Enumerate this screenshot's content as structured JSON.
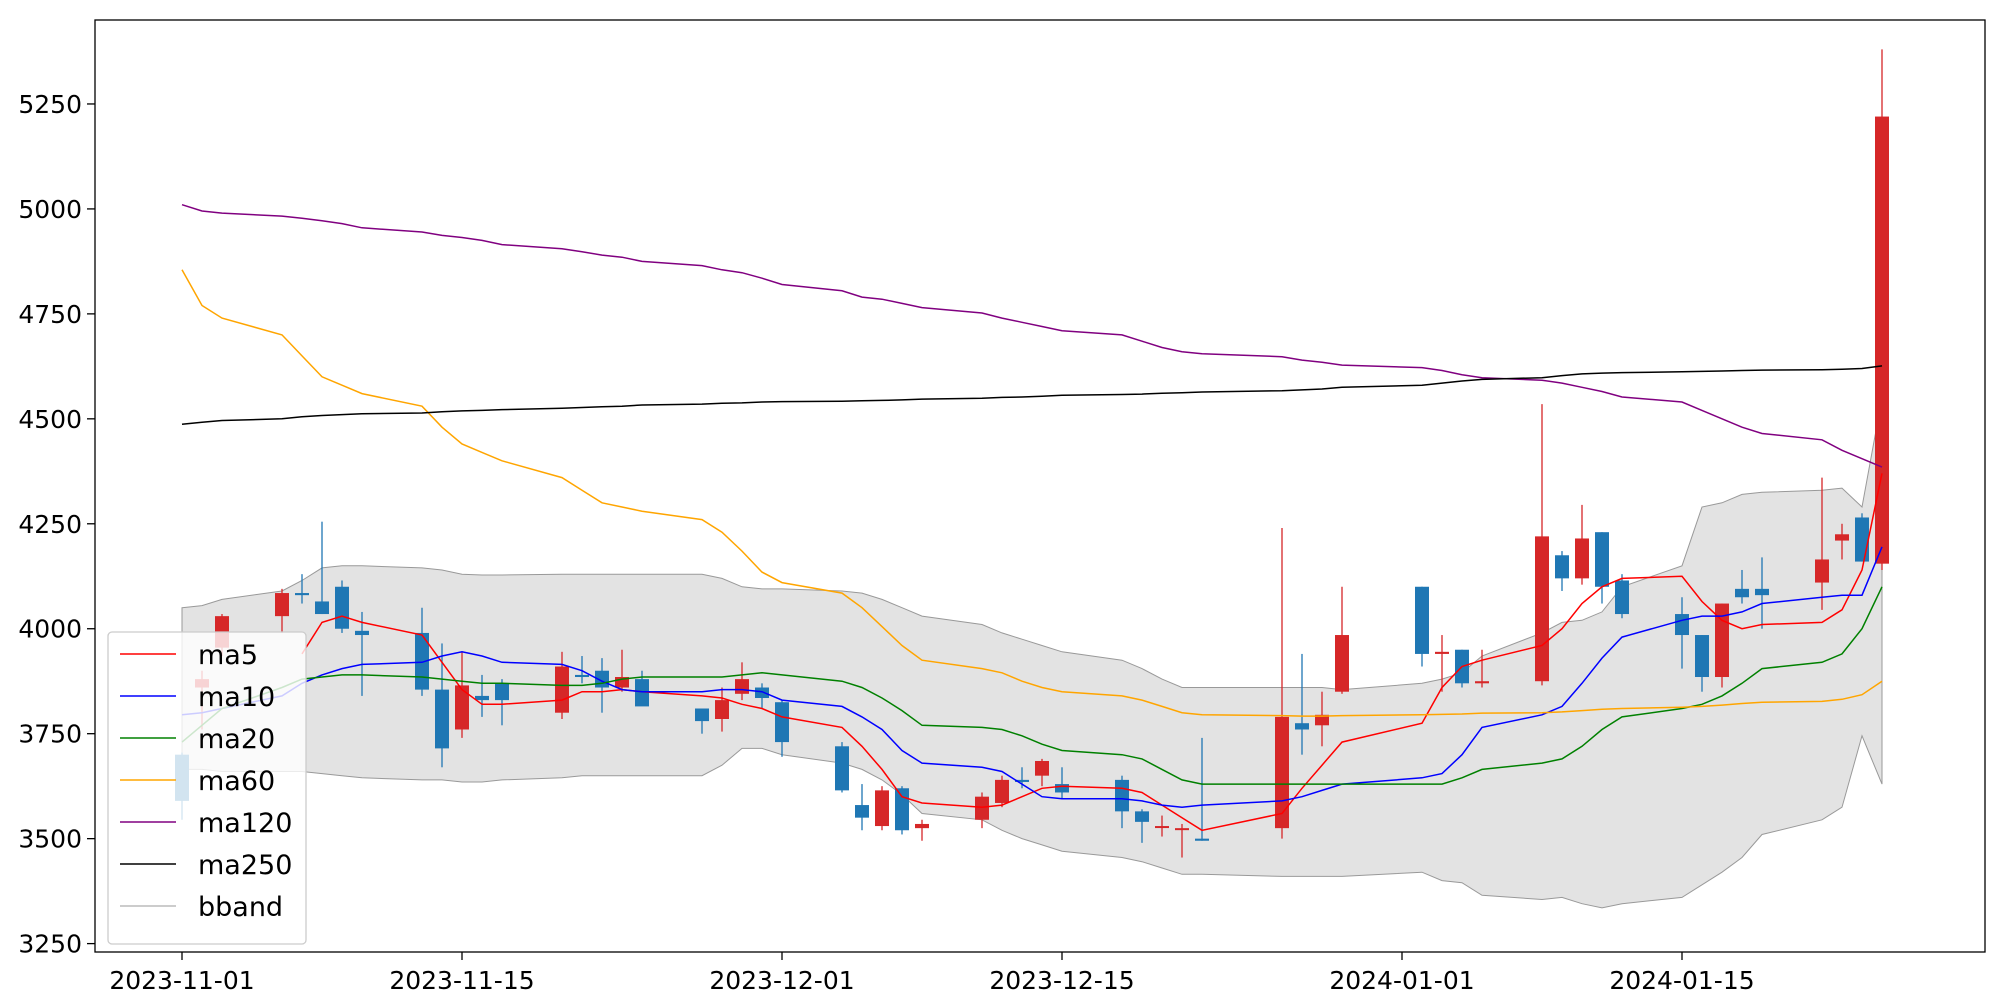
{
  "chart_data": {
    "type": "candlestick",
    "title": "",
    "xlabel": "",
    "ylabel": "",
    "ylim": [
      3230,
      5450
    ],
    "y_ticks": [
      3250,
      3500,
      3750,
      4000,
      4250,
      4500,
      4750,
      5000,
      5250
    ],
    "x_ticks": [
      "2023-11-01",
      "2023-11-15",
      "2023-12-01",
      "2023-12-15",
      "2024-01-01",
      "2024-01-15"
    ],
    "grid": false,
    "legend_position": "lower-left",
    "colors": {
      "up": "#d62728",
      "down": "#1f77b4",
      "bband_fill": "#e3e3e3",
      "bband_edge": "#999999"
    },
    "dates": [
      "2023-11-01",
      "2023-11-02",
      "2023-11-03",
      "2023-11-06",
      "2023-11-07",
      "2023-11-08",
      "2023-11-09",
      "2023-11-10",
      "2023-11-13",
      "2023-11-14",
      "2023-11-15",
      "2023-11-16",
      "2023-11-17",
      "2023-11-20",
      "2023-11-21",
      "2023-11-22",
      "2023-11-23",
      "2023-11-24",
      "2023-11-27",
      "2023-11-28",
      "2023-11-29",
      "2023-11-30",
      "2023-12-01",
      "2023-12-04",
      "2023-12-05",
      "2023-12-06",
      "2023-12-07",
      "2023-12-08",
      "2023-12-11",
      "2023-12-12",
      "2023-12-13",
      "2023-12-14",
      "2023-12-15",
      "2023-12-18",
      "2023-12-19",
      "2023-12-20",
      "2023-12-21",
      "2023-12-22",
      "2023-12-26",
      "2023-12-27",
      "2023-12-28",
      "2023-12-29",
      "2024-01-02",
      "2024-01-03",
      "2024-01-04",
      "2024-01-05",
      "2024-01-08",
      "2024-01-09",
      "2024-01-10",
      "2024-01-11",
      "2024-01-12",
      "2024-01-15",
      "2024-01-16",
      "2024-01-17",
      "2024-01-18",
      "2024-01-19",
      "2024-01-22",
      "2024-01-23",
      "2024-01-24",
      "2024-01-25"
    ],
    "ohlc": [
      [
        3700,
        3705,
        3545,
        3590
      ],
      [
        3860,
        3900,
        3760,
        3880
      ],
      [
        3955,
        4035,
        3935,
        4030
      ],
      [
        4030,
        4095,
        3990,
        4085
      ],
      [
        4085,
        4130,
        4060,
        4080
      ],
      [
        4065,
        4255,
        4035,
        4035
      ],
      [
        4100,
        4115,
        3990,
        4000
      ],
      [
        3995,
        4040,
        3840,
        3985
      ],
      [
        3990,
        4050,
        3840,
        3855
      ],
      [
        3855,
        3965,
        3670,
        3715
      ],
      [
        3760,
        3945,
        3740,
        3865
      ],
      [
        3840,
        3890,
        3790,
        3830
      ],
      [
        3870,
        3880,
        3770,
        3830
      ],
      [
        3800,
        3945,
        3785,
        3910
      ],
      [
        3890,
        3935,
        3870,
        3885
      ],
      [
        3900,
        3930,
        3800,
        3860
      ],
      [
        3860,
        3950,
        3850,
        3885
      ],
      [
        3880,
        3900,
        3830,
        3815
      ],
      [
        3810,
        3810,
        3750,
        3780
      ],
      [
        3785,
        3860,
        3755,
        3830
      ],
      [
        3845,
        3920,
        3830,
        3880
      ],
      [
        3860,
        3870,
        3810,
        3835
      ],
      [
        3825,
        3830,
        3695,
        3730
      ],
      [
        3720,
        3730,
        3610,
        3615
      ],
      [
        3580,
        3630,
        3520,
        3550
      ],
      [
        3530,
        3625,
        3520,
        3615
      ],
      [
        3620,
        3625,
        3510,
        3520
      ],
      [
        3525,
        3545,
        3495,
        3535
      ],
      [
        3545,
        3610,
        3525,
        3600
      ],
      [
        3585,
        3650,
        3575,
        3640
      ],
      [
        3640,
        3670,
        3620,
        3635
      ],
      [
        3650,
        3690,
        3625,
        3685
      ],
      [
        3630,
        3670,
        3595,
        3610
      ],
      [
        3640,
        3650,
        3525,
        3565
      ],
      [
        3565,
        3570,
        3490,
        3540
      ],
      [
        3530,
        3555,
        3505,
        3530
      ],
      [
        3525,
        3535,
        3455,
        3525
      ],
      [
        3500,
        3740,
        3495,
        3495
      ],
      [
        3525,
        4240,
        3500,
        3790
      ],
      [
        3775,
        3940,
        3700,
        3760
      ],
      [
        3770,
        3850,
        3720,
        3795
      ],
      [
        3850,
        4100,
        3845,
        3985
      ],
      [
        4100,
        4100,
        3910,
        3940
      ],
      [
        3940,
        3985,
        3850,
        3945
      ],
      [
        3950,
        3950,
        3860,
        3870
      ],
      [
        3870,
        3950,
        3860,
        3875
      ],
      [
        3875,
        4535,
        3865,
        4220
      ],
      [
        4175,
        4185,
        4090,
        4120
      ],
      [
        4120,
        4295,
        4105,
        4215
      ],
      [
        4230,
        4230,
        4060,
        4100
      ],
      [
        4115,
        4130,
        4025,
        4035
      ],
      [
        4035,
        4075,
        3905,
        3985
      ],
      [
        3985,
        3985,
        3850,
        3885
      ],
      [
        3885,
        4060,
        3860,
        4060
      ],
      [
        4095,
        4140,
        4060,
        4075
      ],
      [
        4095,
        4170,
        4000,
        4080
      ],
      [
        4110,
        4360,
        4045,
        4165
      ],
      [
        4210,
        4250,
        4165,
        4225
      ],
      [
        4265,
        4275,
        4160,
        4160
      ],
      [
        4155,
        5380,
        4140,
        5220
      ]
    ],
    "series": [
      {
        "name": "ma5",
        "color": "#ff0000",
        "values": [
          null,
          null,
          null,
          null,
          3940,
          4015,
          4030,
          4015,
          3985,
          3920,
          3855,
          3820,
          3820,
          3830,
          3850,
          3850,
          3855,
          3850,
          3840,
          3835,
          3820,
          3810,
          3790,
          3765,
          3720,
          3665,
          3600,
          3585,
          3575,
          3580,
          3600,
          3620,
          3625,
          3620,
          3610,
          3580,
          3550,
          3520,
          3560,
          3620,
          3675,
          3730,
          3775,
          3860,
          3910,
          3925,
          3960,
          4000,
          4060,
          4100,
          4120,
          4125,
          4065,
          4020,
          4000,
          4010,
          4015,
          4045,
          4140,
          4370
        ]
      },
      {
        "name": "ma10",
        "color": "#0000ff",
        "values": [
          3795,
          3800,
          3810,
          3840,
          3870,
          3890,
          3905,
          3915,
          3920,
          3935,
          3945,
          3935,
          3920,
          3915,
          3900,
          3875,
          3855,
          3850,
          3850,
          3855,
          3855,
          3850,
          3830,
          3815,
          3790,
          3760,
          3710,
          3680,
          3670,
          3660,
          3630,
          3600,
          3595,
          3595,
          3590,
          3580,
          3575,
          3580,
          3590,
          3600,
          3615,
          3630,
          3645,
          3655,
          3700,
          3765,
          3795,
          3815,
          3870,
          3930,
          3980,
          4020,
          4030,
          4030,
          4040,
          4060,
          4075,
          4080,
          4080,
          4195
        ]
      },
      {
        "name": "ma20",
        "color": "#008000",
        "values": [
          3730,
          3770,
          3810,
          3860,
          3880,
          3885,
          3890,
          3890,
          3885,
          3880,
          3875,
          3870,
          3870,
          3865,
          3865,
          3870,
          3880,
          3885,
          3885,
          3885,
          3890,
          3895,
          3890,
          3875,
          3860,
          3835,
          3805,
          3770,
          3765,
          3760,
          3745,
          3725,
          3710,
          3700,
          3690,
          3665,
          3640,
          3630,
          3630,
          3630,
          3630,
          3630,
          3630,
          3630,
          3645,
          3665,
          3680,
          3690,
          3720,
          3760,
          3790,
          3810,
          3820,
          3840,
          3870,
          3905,
          3920,
          3940,
          4000,
          4100
        ]
      },
      {
        "name": "ma60",
        "color": "#ffa500",
        "values": [
          4855,
          4770,
          4740,
          4700,
          4650,
          4600,
          4580,
          4560,
          4530,
          4480,
          4440,
          4420,
          4400,
          4360,
          4330,
          4300,
          4290,
          4280,
          4260,
          4230,
          4185,
          4135,
          4110,
          4085,
          4050,
          4005,
          3960,
          3925,
          3905,
          3895,
          3875,
          3860,
          3850,
          3840,
          3830,
          3815,
          3800,
          3795,
          3793,
          3792,
          3792,
          3793,
          3795,
          3796,
          3797,
          3799,
          3800,
          3802,
          3805,
          3808,
          3810,
          3813,
          3815,
          3818,
          3822,
          3825,
          3827,
          3832,
          3843,
          3875
        ]
      },
      {
        "name": "ma120",
        "color": "#800080",
        "values": [
          5010,
          4995,
          4990,
          4983,
          4978,
          4972,
          4965,
          4955,
          4945,
          4937,
          4932,
          4925,
          4915,
          4905,
          4898,
          4890,
          4885,
          4875,
          4865,
          4855,
          4848,
          4835,
          4820,
          4805,
          4790,
          4785,
          4775,
          4765,
          4752,
          4740,
          4730,
          4720,
          4710,
          4700,
          4685,
          4670,
          4660,
          4655,
          4648,
          4640,
          4635,
          4628,
          4622,
          4615,
          4605,
          4598,
          4592,
          4585,
          4575,
          4565,
          4552,
          4540,
          4520,
          4500,
          4480,
          4465,
          4450,
          4425,
          4405,
          4385
        ]
      },
      {
        "name": "ma250",
        "color": "#000000",
        "values": [
          4487,
          4492,
          4496,
          4500,
          4505,
          4508,
          4510,
          4512,
          4514,
          4517,
          4519,
          4520,
          4522,
          4525,
          4527,
          4529,
          4530,
          4533,
          4535,
          4537,
          4538,
          4540,
          4541,
          4542,
          4543,
          4544,
          4545,
          4547,
          4549,
          4551,
          4552,
          4554,
          4556,
          4558,
          4559,
          4561,
          4562,
          4564,
          4567,
          4569,
          4571,
          4575,
          4580,
          4585,
          4590,
          4594,
          4598,
          4603,
          4607,
          4609,
          4610,
          4612,
          4613,
          4614,
          4615,
          4616,
          4617,
          4618,
          4620,
          4626
        ]
      }
    ],
    "bband": {
      "name": "bband",
      "upper": [
        4050,
        4055,
        4070,
        4090,
        4115,
        4145,
        4150,
        4150,
        4145,
        4140,
        4130,
        4128,
        4128,
        4130,
        4130,
        4130,
        4130,
        4130,
        4130,
        4120,
        4100,
        4095,
        4095,
        4090,
        4085,
        4070,
        4050,
        4030,
        4010,
        3990,
        3975,
        3960,
        3945,
        3925,
        3905,
        3880,
        3860,
        3860,
        3860,
        3860,
        3860,
        3855,
        3870,
        3880,
        3895,
        3935,
        3990,
        4015,
        4020,
        4040,
        4100,
        4150,
        4290,
        4300,
        4320,
        4325,
        4330,
        4335,
        4290,
        4550
      ],
      "lower": [
        3665,
        3665,
        3660,
        3660,
        3660,
        3655,
        3650,
        3645,
        3640,
        3640,
        3635,
        3635,
        3640,
        3645,
        3650,
        3650,
        3650,
        3650,
        3650,
        3675,
        3715,
        3715,
        3700,
        3680,
        3665,
        3640,
        3605,
        3560,
        3545,
        3520,
        3500,
        3485,
        3470,
        3455,
        3445,
        3430,
        3415,
        3415,
        3410,
        3410,
        3410,
        3410,
        3420,
        3400,
        3395,
        3365,
        3355,
        3360,
        3345,
        3335,
        3345,
        3360,
        3390,
        3420,
        3455,
        3510,
        3545,
        3575,
        3745,
        3630
      ]
    }
  }
}
